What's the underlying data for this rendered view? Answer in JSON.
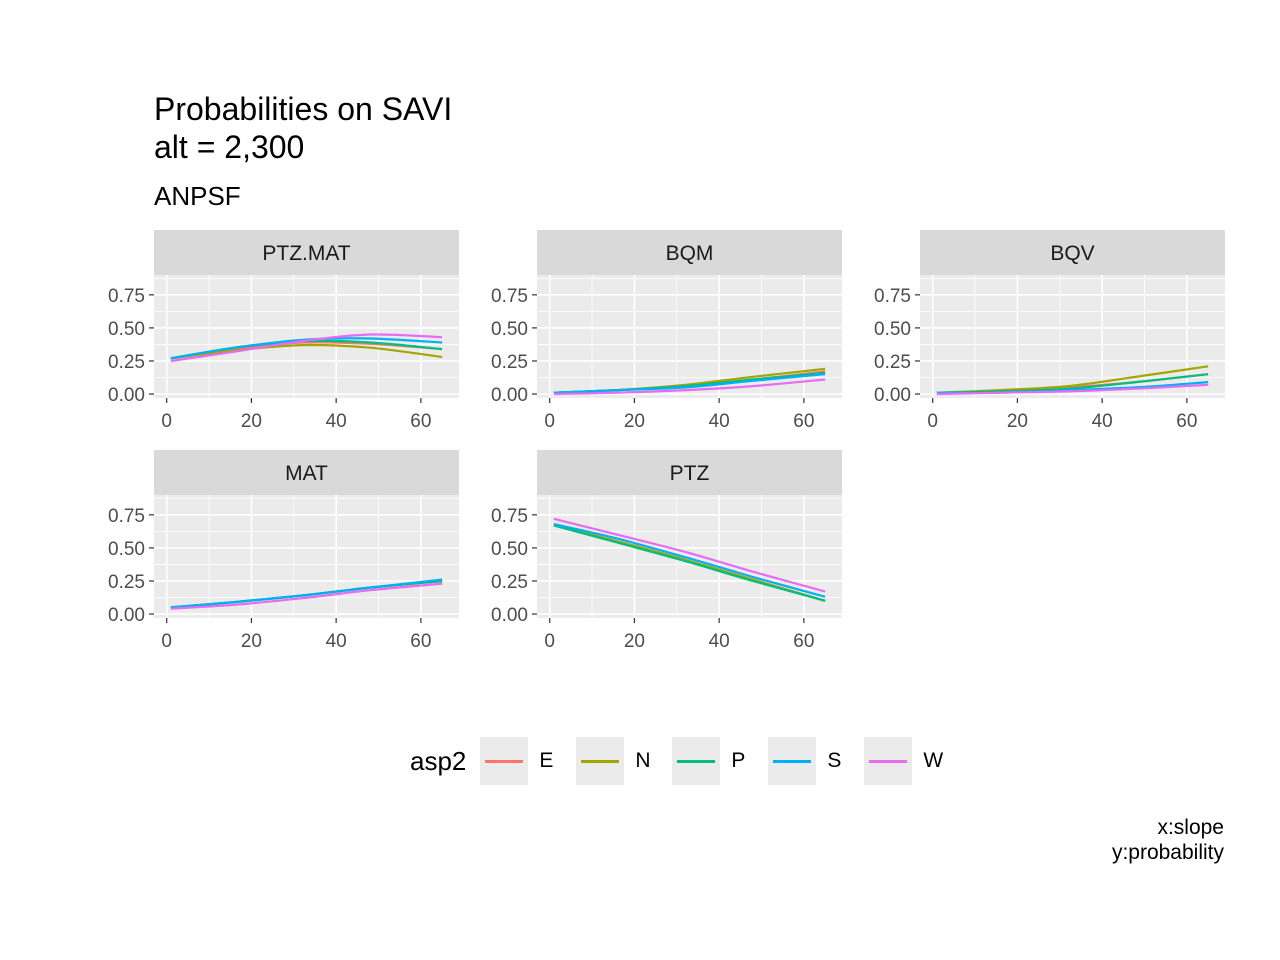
{
  "title_lines": [
    "Probabilities on SAVI",
    "alt = 2,300"
  ],
  "subtitle": "ANPSF",
  "caption_lines": [
    "x:slope",
    "y:probability"
  ],
  "legend": {
    "title": "asp2",
    "items": [
      {
        "label": "E",
        "color": "#F8766D"
      },
      {
        "label": "N",
        "color": "#A3A500"
      },
      {
        "label": "P",
        "color": "#00BF7D"
      },
      {
        "label": "S",
        "color": "#00B0F6"
      },
      {
        "label": "W",
        "color": "#E76BF3"
      }
    ]
  },
  "chart_data": {
    "type": "line",
    "layout": "facet_wrap",
    "x": [
      1,
      16,
      32,
      48,
      65
    ],
    "xlim": [
      -3,
      69
    ],
    "ylim": [
      -0.03,
      0.9
    ],
    "xticks": [
      0,
      20,
      40,
      60
    ],
    "yticks": [
      0.0,
      0.25,
      0.5,
      0.75
    ],
    "ytick_labels": [
      "0.00",
      "0.25",
      "0.50",
      "0.75"
    ],
    "grid": true,
    "legend_position": "bottom",
    "panels": [
      {
        "strip": "PTZ.MAT",
        "series": [
          {
            "name": "E",
            "values": [
              0.27,
              0.34,
              0.39,
              0.38,
              0.34
            ]
          },
          {
            "name": "N",
            "values": [
              0.27,
              0.33,
              0.37,
              0.35,
              0.28
            ]
          },
          {
            "name": "P",
            "values": [
              0.27,
              0.35,
              0.4,
              0.39,
              0.34
            ]
          },
          {
            "name": "S",
            "values": [
              0.27,
              0.35,
              0.41,
              0.42,
              0.39
            ]
          },
          {
            "name": "W",
            "values": [
              0.25,
              0.32,
              0.4,
              0.45,
              0.43
            ]
          }
        ]
      },
      {
        "strip": "BQM",
        "series": [
          {
            "name": "E",
            "values": [
              0.01,
              0.03,
              0.06,
              0.11,
              0.17
            ]
          },
          {
            "name": "N",
            "values": [
              0.01,
              0.03,
              0.07,
              0.13,
              0.19
            ]
          },
          {
            "name": "P",
            "values": [
              0.01,
              0.03,
              0.06,
              0.11,
              0.16
            ]
          },
          {
            "name": "S",
            "values": [
              0.01,
              0.03,
              0.05,
              0.1,
              0.15
            ]
          },
          {
            "name": "W",
            "values": [
              0.0,
              0.01,
              0.03,
              0.06,
              0.11
            ]
          }
        ]
      },
      {
        "strip": "BQV",
        "series": [
          {
            "name": "E",
            "values": [
              0.01,
              0.02,
              0.05,
              0.09,
              0.15
            ]
          },
          {
            "name": "N",
            "values": [
              0.01,
              0.03,
              0.06,
              0.13,
              0.21
            ]
          },
          {
            "name": "P",
            "values": [
              0.01,
              0.02,
              0.04,
              0.09,
              0.15
            ]
          },
          {
            "name": "S",
            "values": [
              0.01,
              0.01,
              0.03,
              0.05,
              0.09
            ]
          },
          {
            "name": "W",
            "values": [
              0.0,
              0.01,
              0.02,
              0.04,
              0.07
            ]
          }
        ]
      },
      {
        "strip": "MAT",
        "series": [
          {
            "name": "E",
            "values": [
              0.05,
              0.09,
              0.14,
              0.2,
              0.25
            ]
          },
          {
            "name": "N",
            "values": [
              0.05,
              0.09,
              0.14,
              0.2,
              0.25
            ]
          },
          {
            "name": "P",
            "values": [
              0.05,
              0.09,
              0.14,
              0.2,
              0.25
            ]
          },
          {
            "name": "S",
            "values": [
              0.05,
              0.09,
              0.14,
              0.2,
              0.26
            ]
          },
          {
            "name": "W",
            "values": [
              0.04,
              0.07,
              0.12,
              0.18,
              0.23
            ]
          }
        ]
      },
      {
        "strip": "PTZ",
        "series": [
          {
            "name": "E",
            "values": [
              0.67,
              0.55,
              0.41,
              0.26,
              0.1
            ]
          },
          {
            "name": "N",
            "values": [
              0.67,
              0.55,
              0.41,
              0.26,
              0.1
            ]
          },
          {
            "name": "P",
            "values": [
              0.67,
              0.54,
              0.4,
              0.25,
              0.1
            ]
          },
          {
            "name": "S",
            "values": [
              0.68,
              0.57,
              0.43,
              0.28,
              0.13
            ]
          },
          {
            "name": "W",
            "values": [
              0.72,
              0.6,
              0.47,
              0.32,
              0.17
            ]
          }
        ]
      }
    ]
  }
}
